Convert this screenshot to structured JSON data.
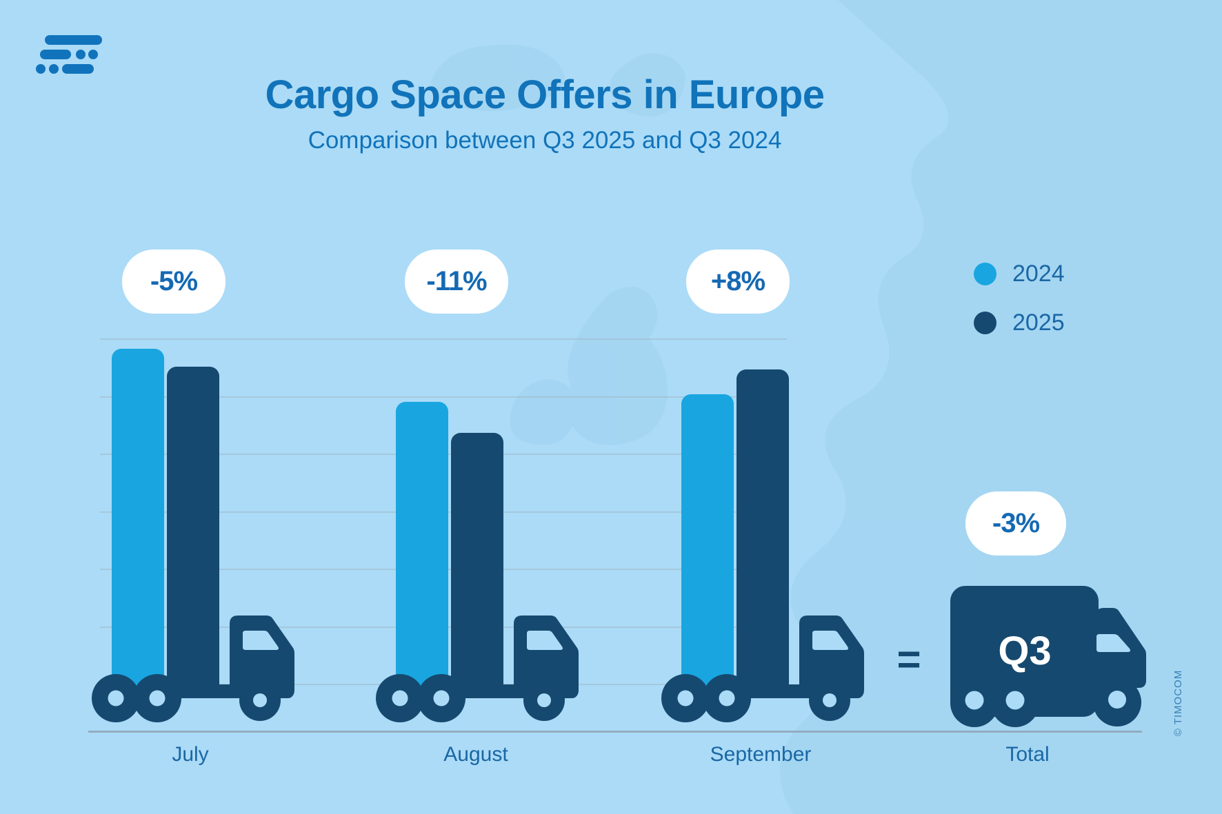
{
  "header": {
    "title": "Cargo Space Offers in Europe",
    "subtitle": "Comparison between Q3 2025 and Q3 2024"
  },
  "legend": {
    "items": [
      {
        "label": "2024",
        "color": "#19A6E0"
      },
      {
        "label": "2025",
        "color": "#16496F"
      }
    ]
  },
  "chart_data": {
    "type": "bar",
    "title": "Cargo Space Offers in Europe",
    "subtitle": "Comparison between Q3 2025 and Q3 2024",
    "categories": [
      "July",
      "August",
      "September"
    ],
    "series": [
      {
        "name": "2024",
        "color": "#19A6E0",
        "values": [
          507,
          430,
          441
        ]
      },
      {
        "name": "2025",
        "color": "#16496F",
        "values": [
          481,
          385,
          477
        ]
      }
    ],
    "values_unit": "relative bar height in px; no absolute axis scale shown",
    "change_labels": [
      "-5%",
      "-11%",
      "+8%"
    ],
    "total": {
      "category": "Total",
      "change_label": "-3%",
      "truck_text": "Q3"
    },
    "legend_position": "top-right",
    "grid": true,
    "gridline_count": 7
  },
  "total": {
    "label": "Total",
    "badge": "-3%",
    "truck_text": "Q3",
    "equals_sign": "="
  },
  "footer": {
    "copyright": "© TIMOCOM"
  },
  "colors": {
    "background": "#ABDBF7",
    "map_silhouette": "#9FD1EE",
    "series_2024": "#19A6E0",
    "series_2025_and_trucks": "#16496F",
    "brand_blue": "#1173B9",
    "badge_background": "#FFFFFF",
    "badge_text": "#1569B3",
    "labels": "#1B67A4",
    "gridline": "#A0B6C6",
    "ground_line": "#8FA5B5"
  }
}
